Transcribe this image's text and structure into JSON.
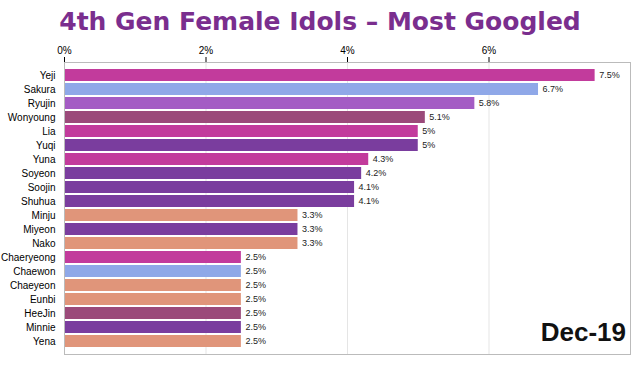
{
  "chart_data": {
    "type": "bar",
    "orientation": "horizontal",
    "title": "4th Gen Female Idols – Most Googled",
    "annotations": [
      "Dec-19"
    ],
    "categories": [
      "Yeji",
      "Sakura",
      "Ryujin",
      "Wonyoung",
      "Lia",
      "Yuqi",
      "Yuna",
      "Soyeon",
      "Soojin",
      "Shuhua",
      "Minju",
      "Miyeon",
      "Nako",
      "Chaeryeong",
      "Chaewon",
      "Chaeyeon",
      "Eunbi",
      "HeeJin",
      "Minnie",
      "Yena"
    ],
    "values": [
      7.5,
      6.7,
      5.8,
      5.1,
      5,
      5,
      4.3,
      4.2,
      4.1,
      4.1,
      3.3,
      3.3,
      3.3,
      2.5,
      2.5,
      2.5,
      2.5,
      2.5,
      2.5,
      2.5
    ],
    "value_labels": [
      "7.5%",
      "6.7%",
      "5.8%",
      "5.1%",
      "5%",
      "5%",
      "4.3%",
      "4.2%",
      "4.1%",
      "4.1%",
      "3.3%",
      "3.3%",
      "3.3%",
      "2.5%",
      "2.5%",
      "2.5%",
      "2.5%",
      "2.5%",
      "2.5%",
      "2.5%"
    ],
    "colors": [
      "#c23b9c",
      "#8fa8e8",
      "#a45cc4",
      "#9b4a7a",
      "#c23b9c",
      "#7a3d9e",
      "#c23b9c",
      "#7a3d9e",
      "#7a3d9e",
      "#7a3d9e",
      "#e0957a",
      "#7a3d9e",
      "#e0957a",
      "#c23b9c",
      "#8fa8e8",
      "#e0957a",
      "#e0957a",
      "#9b4a7a",
      "#7a3d9e",
      "#e0957a"
    ],
    "xlim": [
      0,
      8
    ],
    "xticks": [
      {
        "value": 0,
        "label": "0%"
      },
      {
        "value": 2,
        "label": "2%"
      },
      {
        "value": 4,
        "label": "4%"
      },
      {
        "value": 6,
        "label": "6%"
      }
    ],
    "grid": true,
    "data_labels": true
  }
}
